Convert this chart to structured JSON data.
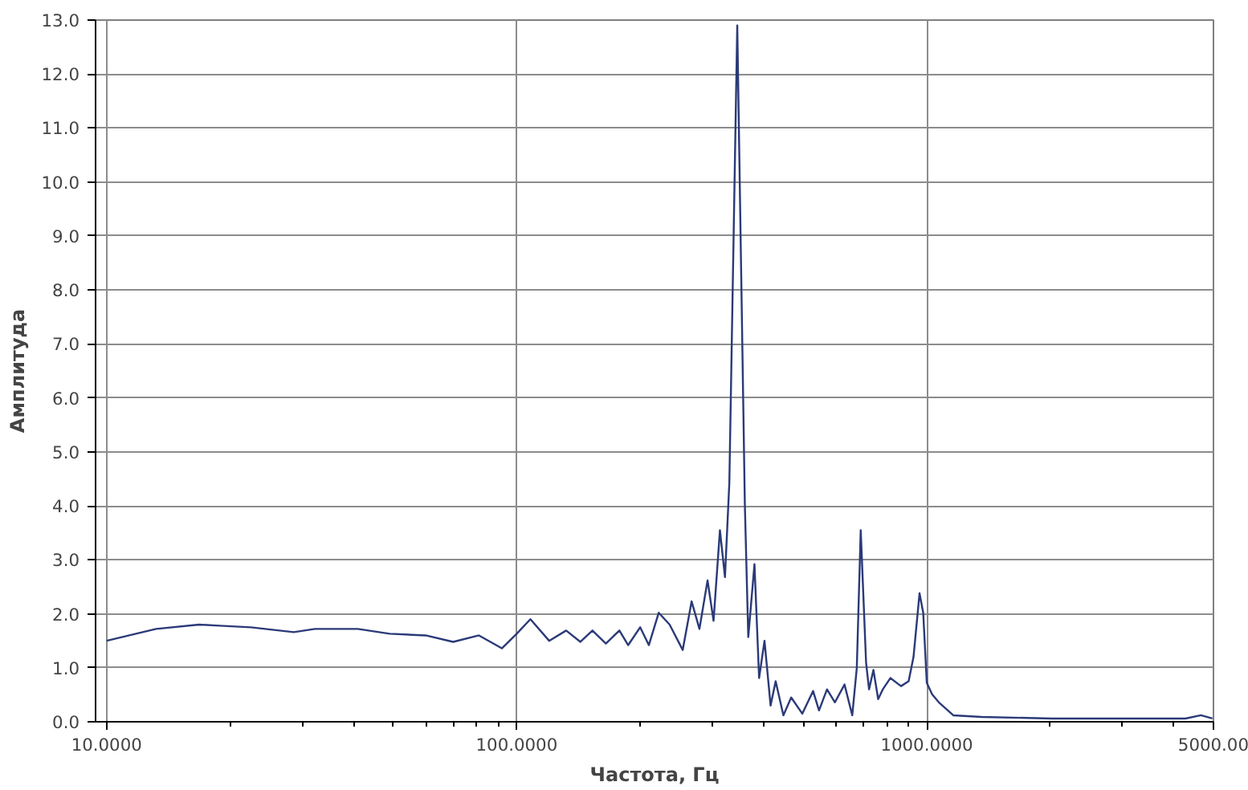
{
  "chart_data": {
    "type": "line",
    "xlabel": "Частота, Гц",
    "ylabel": "Амплитуда",
    "log": "x",
    "grid": true,
    "marker": "none",
    "line_style": "solid",
    "xlim": [
      9.4,
      5000
    ],
    "ylim": [
      0,
      13
    ],
    "xticks": [
      {
        "value": 10,
        "label": "10.0000"
      },
      {
        "value": 20,
        "label": null
      },
      {
        "value": 30,
        "label": null
      },
      {
        "value": 40,
        "label": null
      },
      {
        "value": 50,
        "label": null
      },
      {
        "value": 60,
        "label": null
      },
      {
        "value": 70,
        "label": null
      },
      {
        "value": 80,
        "label": null
      },
      {
        "value": 90,
        "label": null
      },
      {
        "value": 100,
        "label": "100.0000"
      },
      {
        "value": 200,
        "label": null
      },
      {
        "value": 300,
        "label": null
      },
      {
        "value": 400,
        "label": null
      },
      {
        "value": 500,
        "label": null
      },
      {
        "value": 600,
        "label": null
      },
      {
        "value": 700,
        "label": null
      },
      {
        "value": 800,
        "label": null
      },
      {
        "value": 900,
        "label": null
      },
      {
        "value": 1000,
        "label": "1000.0000"
      },
      {
        "value": 2000,
        "label": null
      },
      {
        "value": 3000,
        "label": null
      },
      {
        "value": 4000,
        "label": null
      },
      {
        "value": 5000,
        "label": "5000.00"
      }
    ],
    "yticks": [
      {
        "value": 0,
        "label": "0.0"
      },
      {
        "value": 1,
        "label": "1.0"
      },
      {
        "value": 2,
        "label": "2.0"
      },
      {
        "value": 3,
        "label": "3.0"
      },
      {
        "value": 4,
        "label": "4.0"
      },
      {
        "value": 5,
        "label": "5.0"
      },
      {
        "value": 6,
        "label": "6.0"
      },
      {
        "value": 7,
        "label": "7.0"
      },
      {
        "value": 8,
        "label": "8.0"
      },
      {
        "value": 9,
        "label": "9.0"
      },
      {
        "value": 10,
        "label": "10.0"
      },
      {
        "value": 11,
        "label": "11.0"
      },
      {
        "value": 12,
        "label": "12.0"
      },
      {
        "value": 13,
        "label": "13.0"
      }
    ],
    "series": [
      {
        "color": "#2b3a78",
        "x": [
          10,
          13.2,
          16.8,
          18.9,
          22.5,
          28.6,
          32.2,
          41,
          49,
          60,
          70,
          80.9,
          92,
          100,
          108,
          120,
          132,
          143,
          153,
          165,
          178,
          187,
          200,
          210,
          222,
          236,
          254,
          267,
          279,
          292,
          302,
          313,
          322,
          330,
          345,
          360,
          367,
          380,
          390,
          402,
          416,
          428,
          447,
          467,
          497,
          528,
          546,
          571,
          597,
          630,
          658,
          675,
          690,
          711,
          723,
          741,
          761,
          781,
          815,
          865,
          903,
          928,
          960,
          980,
          1000,
          1030,
          1070,
          1160,
          1360,
          2020,
          2990,
          4270,
          4660,
          4970
        ],
        "values": [
          1.5,
          1.72,
          1.8,
          1.78,
          1.75,
          1.66,
          1.72,
          1.72,
          1.63,
          1.6,
          1.48,
          1.6,
          1.36,
          1.63,
          1.9,
          1.5,
          1.69,
          1.48,
          1.69,
          1.45,
          1.69,
          1.42,
          1.75,
          1.42,
          2.02,
          1.8,
          1.33,
          2.23,
          1.72,
          2.62,
          1.87,
          3.55,
          2.68,
          4.43,
          12.9,
          4.03,
          1.57,
          2.92,
          0.81,
          1.5,
          0.3,
          0.75,
          0.12,
          0.45,
          0.15,
          0.57,
          0.21,
          0.6,
          0.36,
          0.69,
          0.12,
          1.0,
          3.55,
          1.1,
          0.6,
          0.96,
          0.42,
          0.6,
          0.81,
          0.66,
          0.75,
          1.2,
          2.38,
          2.02,
          0.72,
          0.51,
          0.36,
          0.12,
          0.09,
          0.06,
          0.06,
          0.06,
          0.12,
          0.06
        ]
      }
    ]
  }
}
